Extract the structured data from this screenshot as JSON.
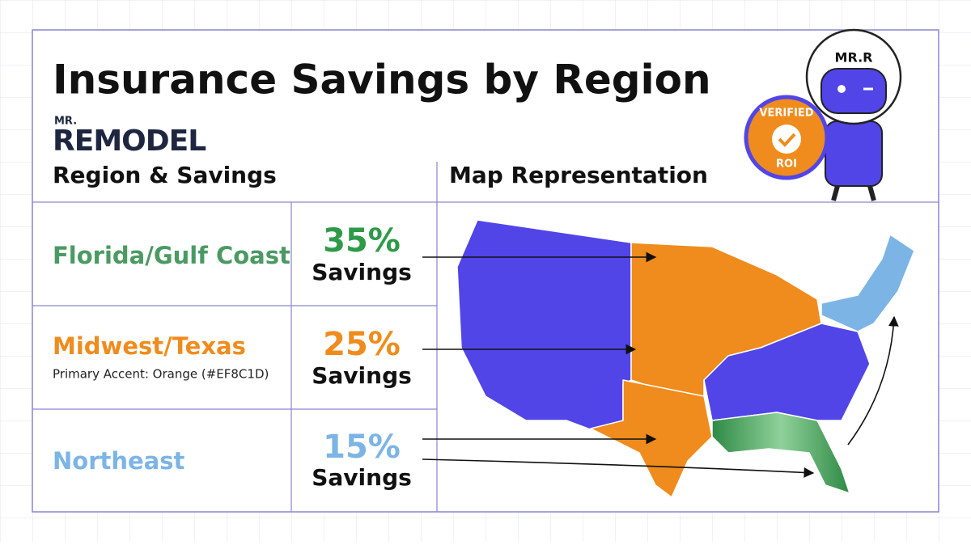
{
  "header": {
    "title": "Insurance Savings by Region",
    "logo": {
      "small": "MR.",
      "main": "REMODEL"
    }
  },
  "mascot": {
    "helmet": "MR.R",
    "badge": {
      "top": "VERIFIED",
      "bottom": "ROI"
    }
  },
  "table": {
    "headers": [
      "Region & Savings",
      "Map Representation"
    ],
    "rows": [
      {
        "region": "Florida/Gulf Coast",
        "percent": "35%",
        "label": "Savings"
      },
      {
        "region": "Midwest/Texas",
        "note": "Primary Accent: Orange (#EF8C1D)",
        "percent": "25%",
        "label": "Savings"
      },
      {
        "region": "Northeast",
        "percent": "15%",
        "label": "Savings"
      }
    ]
  }
}
